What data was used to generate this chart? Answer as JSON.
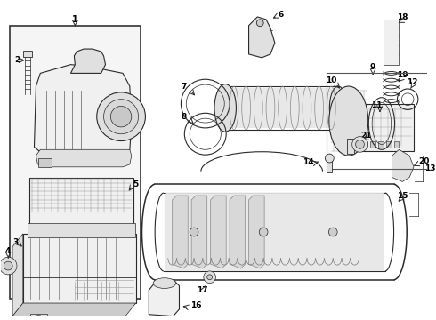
{
  "background_color": "#ffffff",
  "line_color": "#2a2a2a",
  "fig_width": 4.9,
  "fig_height": 3.6,
  "dpi": 100,
  "lw_thin": 0.5,
  "lw_med": 0.8,
  "lw_thick": 1.1,
  "font_size": 7.0,
  "font_size_small": 6.5
}
